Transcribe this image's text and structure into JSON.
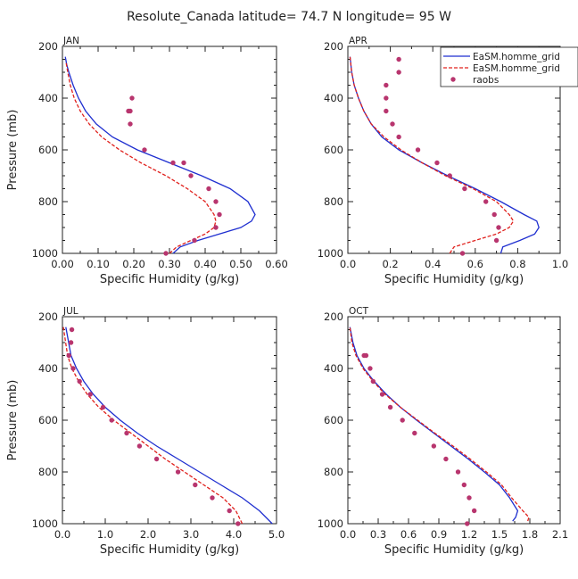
{
  "title": "Resolute_Canada   latitude= 74.7 N longitude= 95 W",
  "colors": {
    "model_solid": "#1f2fd0",
    "model_dashed": "#e0201c",
    "raobs": "#b8356e"
  },
  "legend": [
    "EaSM.homme_grid",
    "EaSM.homme_grid",
    "raobs"
  ],
  "chart_data": [
    {
      "type": "line",
      "panel": "JAN",
      "xlabel": "Specific Humidity (g/kg)",
      "ylabel": "Pressure (mb)",
      "xlim": [
        0,
        0.6
      ],
      "ylim": [
        1000,
        200
      ],
      "xticks": [
        "0.00",
        "0.10",
        "0.20",
        "0.30",
        "0.40",
        "0.50",
        "0.60"
      ],
      "yticks": [
        "200",
        "400",
        "600",
        "800",
        "1000"
      ],
      "series": [
        {
          "name": "EaSM.homme_grid",
          "style": "solid",
          "x": [
            0.31,
            0.33,
            0.38,
            0.44,
            0.5,
            0.53,
            0.54,
            0.52,
            0.47,
            0.39,
            0.3,
            0.21,
            0.14,
            0.095,
            0.065,
            0.045,
            0.03,
            0.018,
            0.012,
            0.008
          ],
          "y": [
            1000,
            975,
            950,
            925,
            900,
            875,
            850,
            800,
            750,
            700,
            650,
            600,
            550,
            500,
            450,
            400,
            350,
            300,
            270,
            240
          ]
        },
        {
          "name": "EaSM.homme_grid",
          "style": "dashed",
          "x": [
            0.3,
            0.32,
            0.36,
            0.4,
            0.425,
            0.43,
            0.425,
            0.4,
            0.35,
            0.29,
            0.22,
            0.16,
            0.11,
            0.075,
            0.05,
            0.033,
            0.022,
            0.015,
            0.01
          ],
          "y": [
            1000,
            975,
            950,
            925,
            900,
            875,
            850,
            800,
            750,
            700,
            650,
            600,
            550,
            500,
            450,
            400,
            350,
            300,
            260
          ]
        },
        {
          "name": "raobs",
          "style": "points",
          "x": [
            0.29,
            0.37,
            0.43,
            0.44,
            0.43,
            0.41,
            0.36,
            0.34,
            0.31,
            0.23,
            0.19,
            0.185,
            0.19,
            0.195
          ],
          "y": [
            1000,
            950,
            900,
            850,
            800,
            750,
            700,
            650,
            650,
            600,
            500,
            450,
            450,
            400
          ]
        }
      ]
    },
    {
      "type": "line",
      "panel": "APR",
      "xlabel": "Specific Humidity (g/kg)",
      "ylabel": "",
      "xlim": [
        0,
        1.0
      ],
      "ylim": [
        1000,
        200
      ],
      "xticks": [
        "0.0",
        "0.2",
        "0.4",
        "0.6",
        "0.8",
        "1.0"
      ],
      "yticks": [
        "200",
        "400",
        "600",
        "800",
        "1000"
      ],
      "series": [
        {
          "name": "EaSM.homme_grid",
          "style": "solid",
          "x": [
            0.72,
            0.73,
            0.81,
            0.88,
            0.9,
            0.89,
            0.83,
            0.72,
            0.6,
            0.47,
            0.35,
            0.24,
            0.16,
            0.11,
            0.075,
            0.05,
            0.03,
            0.018,
            0.01
          ],
          "y": [
            1000,
            975,
            950,
            925,
            900,
            875,
            850,
            800,
            750,
            700,
            650,
            600,
            550,
            500,
            450,
            400,
            350,
            300,
            240
          ]
        },
        {
          "name": "EaSM.homme_grid",
          "style": "dashed",
          "x": [
            0.48,
            0.5,
            0.6,
            0.7,
            0.76,
            0.78,
            0.76,
            0.7,
            0.59,
            0.46,
            0.35,
            0.25,
            0.17,
            0.11,
            0.075,
            0.05,
            0.03,
            0.018,
            0.01
          ],
          "y": [
            1000,
            975,
            950,
            925,
            900,
            875,
            850,
            800,
            750,
            700,
            650,
            600,
            550,
            500,
            450,
            400,
            350,
            300,
            240
          ]
        },
        {
          "name": "raobs",
          "style": "points",
          "x": [
            0.54,
            0.7,
            0.71,
            0.69,
            0.65,
            0.55,
            0.48,
            0.42,
            0.33,
            0.24,
            0.21,
            0.18,
            0.18,
            0.18,
            0.24,
            0.24
          ],
          "y": [
            1000,
            950,
            900,
            850,
            800,
            750,
            700,
            650,
            600,
            550,
            500,
            450,
            400,
            350,
            300,
            250
          ]
        }
      ]
    },
    {
      "type": "line",
      "panel": "JUL",
      "xlabel": "Specific Humidity (g/kg)",
      "ylabel": "Pressure (mb)",
      "xlim": [
        0,
        5.0
      ],
      "ylim": [
        1000,
        200
      ],
      "xticks": [
        "0.0",
        "1.0",
        "2.0",
        "3.0",
        "4.0",
        "5.0"
      ],
      "yticks": [
        "200",
        "400",
        "600",
        "800",
        "1000"
      ],
      "series": [
        {
          "name": "EaSM.homme_grid",
          "style": "solid",
          "x": [
            4.9,
            4.6,
            4.2,
            3.7,
            3.2,
            2.7,
            2.2,
            1.75,
            1.35,
            1.0,
            0.72,
            0.5,
            0.33,
            0.2,
            0.08
          ],
          "y": [
            1000,
            950,
            900,
            850,
            800,
            750,
            700,
            650,
            600,
            550,
            500,
            450,
            400,
            350,
            240
          ]
        },
        {
          "name": "EaSM.homme_grid",
          "style": "dashed",
          "x": [
            4.2,
            4.05,
            3.75,
            3.3,
            2.85,
            2.4,
            2.0,
            1.6,
            1.2,
            0.85,
            0.58,
            0.38,
            0.22,
            0.12,
            0.02
          ],
          "y": [
            1000,
            950,
            900,
            850,
            800,
            750,
            700,
            650,
            600,
            550,
            500,
            450,
            400,
            350,
            240
          ]
        },
        {
          "name": "raobs",
          "style": "points",
          "x": [
            4.1,
            3.9,
            3.5,
            3.1,
            2.7,
            2.2,
            1.8,
            1.5,
            1.15,
            0.95,
            0.65,
            0.4,
            0.25,
            0.15,
            0.2,
            0.22
          ],
          "y": [
            1000,
            950,
            900,
            850,
            800,
            750,
            700,
            650,
            600,
            550,
            500,
            450,
            400,
            350,
            300,
            250
          ]
        }
      ]
    },
    {
      "type": "line",
      "panel": "OCT",
      "xlabel": "Specific Humidity (g/kg)",
      "ylabel": "",
      "xlim": [
        0,
        2.1
      ],
      "ylim": [
        1000,
        200
      ],
      "xticks": [
        "0.0",
        "0.3",
        "0.6",
        "0.9",
        "1.2",
        "1.5",
        "1.8",
        "2.1"
      ],
      "yticks": [
        "200",
        "400",
        "600",
        "800",
        "1000"
      ],
      "series": [
        {
          "name": "EaSM.homme_grid",
          "style": "solid",
          "x": [
            1.63,
            1.66,
            1.68,
            1.6,
            1.5,
            1.35,
            1.19,
            1.02,
            0.85,
            0.68,
            0.52,
            0.38,
            0.26,
            0.16,
            0.09,
            0.05,
            0.02
          ],
          "y": [
            990,
            975,
            950,
            900,
            850,
            800,
            750,
            700,
            650,
            600,
            550,
            500,
            450,
            400,
            350,
            300,
            240
          ]
        },
        {
          "name": "EaSM.homme_grid",
          "style": "dashed",
          "x": [
            1.78,
            1.79,
            1.73,
            1.62,
            1.52,
            1.37,
            1.21,
            1.04,
            0.86,
            0.69,
            0.52,
            0.37,
            0.25,
            0.15,
            0.08,
            0.04,
            0.02
          ],
          "y": [
            990,
            975,
            950,
            900,
            850,
            800,
            750,
            700,
            650,
            600,
            550,
            500,
            450,
            400,
            350,
            300,
            240
          ]
        },
        {
          "name": "raobs",
          "style": "points",
          "x": [
            1.18,
            1.25,
            1.2,
            1.15,
            1.09,
            0.97,
            0.85,
            0.66,
            0.54,
            0.42,
            0.34,
            0.25,
            0.22,
            0.18,
            0.16
          ],
          "y": [
            1000,
            950,
            900,
            850,
            800,
            750,
            700,
            650,
            600,
            550,
            500,
            450,
            400,
            350,
            350
          ]
        }
      ]
    }
  ]
}
